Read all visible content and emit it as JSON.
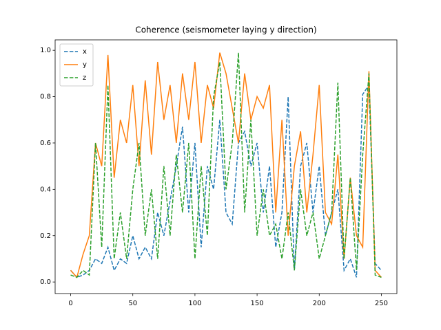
{
  "chart_data": {
    "type": "line",
    "title": "Coherence (seismometer laying y direction)",
    "x": [
      0,
      5,
      10,
      15,
      20,
      25,
      30,
      35,
      40,
      45,
      50,
      55,
      60,
      65,
      70,
      75,
      80,
      85,
      90,
      95,
      100,
      105,
      110,
      115,
      120,
      125,
      130,
      135,
      140,
      145,
      150,
      155,
      160,
      165,
      170,
      175,
      180,
      185,
      190,
      195,
      200,
      205,
      210,
      215,
      220,
      225,
      230,
      235,
      240,
      245,
      250
    ],
    "series": [
      {
        "name": "x",
        "color": "#1f77b4",
        "dash": true,
        "values": [
          0.05,
          0.02,
          0.03,
          0.05,
          0.1,
          0.08,
          0.15,
          0.05,
          0.1,
          0.08,
          0.2,
          0.1,
          0.15,
          0.1,
          0.3,
          0.2,
          0.35,
          0.5,
          0.67,
          0.3,
          0.6,
          0.15,
          0.5,
          0.4,
          0.7,
          0.3,
          0.25,
          0.6,
          0.65,
          0.5,
          0.6,
          0.3,
          0.5,
          0.15,
          0.3,
          0.8,
          0.05,
          0.5,
          0.6,
          0.3,
          0.5,
          0.2,
          0.3,
          0.4,
          0.05,
          0.1,
          0.02,
          0.81,
          0.85,
          0.08,
          0.05
        ]
      },
      {
        "name": "y",
        "color": "#ff7f0e",
        "dash": false,
        "values": [
          0.05,
          0.02,
          0.12,
          0.2,
          0.6,
          0.5,
          0.98,
          0.45,
          0.7,
          0.6,
          0.85,
          0.5,
          0.87,
          0.55,
          0.95,
          0.7,
          0.85,
          0.6,
          0.9,
          0.7,
          0.95,
          0.6,
          0.85,
          0.75,
          0.99,
          0.9,
          0.75,
          0.6,
          0.9,
          0.7,
          0.8,
          0.75,
          0.85,
          0.3,
          0.7,
          0.2,
          0.5,
          0.65,
          0.3,
          0.55,
          0.85,
          0.3,
          0.25,
          0.55,
          0.1,
          0.45,
          0.2,
          0.15,
          0.91,
          0.05,
          0.02
        ]
      },
      {
        "name": "z",
        "color": "#2ca02c",
        "dash": true,
        "values": [
          0.03,
          0.02,
          0.05,
          0.03,
          0.6,
          0.15,
          0.85,
          0.1,
          0.3,
          0.1,
          0.4,
          0.6,
          0.2,
          0.4,
          0.1,
          0.5,
          0.2,
          0.55,
          0.3,
          0.6,
          0.1,
          0.5,
          0.2,
          0.8,
          0.95,
          0.4,
          0.6,
          0.99,
          0.3,
          0.7,
          0.2,
          0.4,
          0.2,
          0.25,
          0.1,
          0.3,
          0.05,
          0.4,
          0.2,
          0.3,
          0.1,
          0.2,
          0.3,
          0.86,
          0.1,
          0.45,
          0.05,
          0.55,
          0.9,
          0.03,
          0.02
        ]
      }
    ],
    "xlim": [
      -12.5,
      262.5
    ],
    "xticks": [
      0,
      50,
      100,
      150,
      200,
      250
    ],
    "ylim": [
      -0.05,
      1.045
    ],
    "yticks": [
      {
        "value": 0,
        "label": "0.0"
      },
      0.2,
      0.4,
      0.6,
      0.8,
      {
        "value": 1,
        "label": "1.0"
      }
    ],
    "legend": "upper left"
  }
}
